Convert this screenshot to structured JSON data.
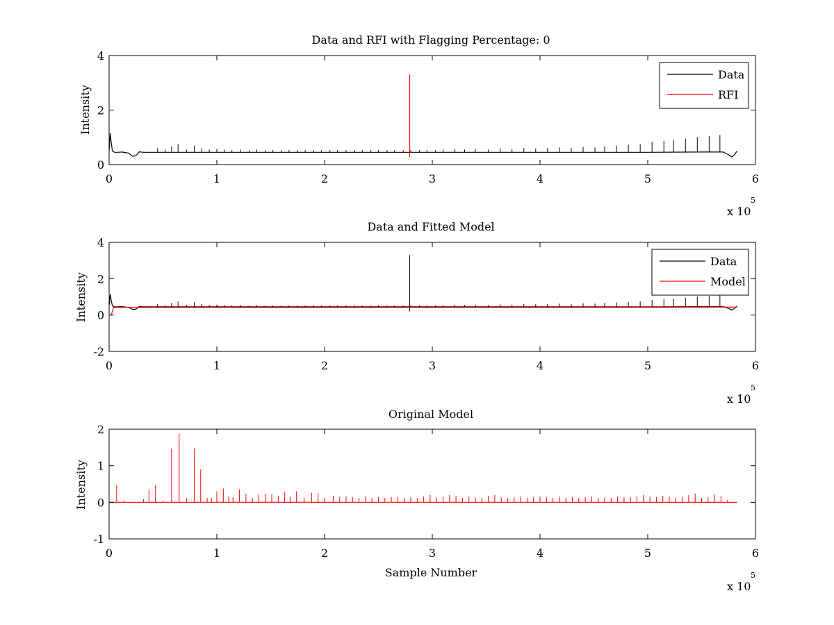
{
  "figure": {
    "background": "#ffffff",
    "data_color": "#000000",
    "rfi_color": "#ff0000",
    "model_color": "#ff0000"
  },
  "chart_data": [
    {
      "type": "line",
      "title": "Data and RFI with Flagging Percentage: 0",
      "xlabel": "",
      "ylabel": "Intensity",
      "xlim": [
        0,
        6
      ],
      "ylim": [
        0,
        4
      ],
      "xticks": [
        "0",
        "1",
        "2",
        "3",
        "4",
        "5",
        "6"
      ],
      "yticks": [
        "0",
        "2",
        "4"
      ],
      "x_multiplier_base": "x 10",
      "x_multiplier_exp": "5",
      "legend": {
        "position": "top-right",
        "entries": [
          "Data",
          "RFI"
        ]
      },
      "series": [
        {
          "name": "Data",
          "color": "#000000",
          "baseline": 0.45,
          "x": [
            0,
            0.01,
            0.02,
            0.03,
            0.05,
            0.08,
            0.12,
            0.18,
            0.22,
            0.25,
            0.28,
            0.32,
            0.5,
            1.0,
            2.0,
            3.0,
            4.0,
            5.0,
            5.5,
            5.7,
            5.75,
            5.78,
            5.8,
            5.83
          ],
          "y": [
            0.5,
            1.15,
            0.8,
            0.5,
            0.45,
            0.45,
            0.46,
            0.42,
            0.3,
            0.33,
            0.47,
            0.45,
            0.45,
            0.45,
            0.45,
            0.45,
            0.45,
            0.45,
            0.46,
            0.46,
            0.36,
            0.28,
            0.34,
            0.5
          ],
          "spikes_x": [
            0.45,
            0.52,
            0.58,
            0.64,
            0.72,
            0.79,
            0.86,
            0.93,
            1.0,
            1.07,
            1.14,
            1.22,
            1.3,
            1.37,
            1.45,
            1.52,
            1.6,
            1.67,
            1.75,
            1.82,
            1.9,
            1.97,
            2.05,
            2.12,
            2.2,
            2.28,
            2.35,
            2.43,
            2.5,
            2.58,
            2.65,
            2.73,
            2.8,
            2.88,
            2.95,
            3.03,
            3.1,
            3.21,
            3.3,
            3.4,
            3.52,
            3.63,
            3.74,
            3.85,
            3.96,
            4.07,
            4.18,
            4.29,
            4.4,
            4.51,
            4.6,
            4.71,
            4.82,
            4.93,
            5.04,
            5.15,
            5.24,
            5.35,
            5.46,
            5.57,
            5.67
          ],
          "spikes_h": [
            0.15,
            0.1,
            0.22,
            0.3,
            0.1,
            0.25,
            0.15,
            0.1,
            0.12,
            0.1,
            0.08,
            0.1,
            0.08,
            0.1,
            0.08,
            0.08,
            0.08,
            0.08,
            0.08,
            0.08,
            0.08,
            0.08,
            0.08,
            0.08,
            0.08,
            0.08,
            0.08,
            0.08,
            0.08,
            0.08,
            0.08,
            0.08,
            0.08,
            0.08,
            0.08,
            0.08,
            0.1,
            0.12,
            0.1,
            0.12,
            0.1,
            0.14,
            0.12,
            0.16,
            0.14,
            0.16,
            0.18,
            0.16,
            0.2,
            0.18,
            0.22,
            0.24,
            0.28,
            0.3,
            0.38,
            0.42,
            0.46,
            0.5,
            0.56,
            0.6,
            0.64
          ]
        },
        {
          "name": "RFI",
          "color": "#ff0000",
          "x": [
            2.79,
            2.79
          ],
          "y": [
            0.28,
            3.3
          ]
        }
      ]
    },
    {
      "type": "line",
      "title": "Data and Fitted Model",
      "xlabel": "",
      "ylabel": "Intensity",
      "xlim": [
        0,
        6
      ],
      "ylim": [
        -2,
        4
      ],
      "xticks": [
        "0",
        "1",
        "2",
        "3",
        "4",
        "5",
        "6"
      ],
      "yticks": [
        "-2",
        "0",
        "2",
        "4"
      ],
      "x_multiplier_base": "x 10",
      "x_multiplier_exp": "5",
      "legend": {
        "position": "top-right",
        "entries": [
          "Data",
          "Model"
        ]
      },
      "series": [
        {
          "name": "Data",
          "color": "#000000",
          "baseline": 0.45,
          "x": [
            0,
            0.01,
            0.02,
            0.03,
            0.05,
            0.08,
            0.12,
            0.18,
            0.22,
            0.25,
            0.28,
            0.32,
            0.5,
            1.0,
            2.0,
            3.0,
            4.0,
            5.0,
            5.5,
            5.7,
            5.75,
            5.78,
            5.8,
            5.83
          ],
          "y": [
            0.5,
            1.15,
            0.8,
            0.5,
            0.45,
            0.45,
            0.46,
            0.42,
            0.3,
            0.33,
            0.47,
            0.45,
            0.45,
            0.45,
            0.45,
            0.45,
            0.45,
            0.45,
            0.46,
            0.46,
            0.36,
            0.28,
            0.34,
            0.5
          ],
          "spikes_x": [
            0.45,
            0.52,
            0.58,
            0.64,
            0.72,
            0.79,
            0.86,
            0.93,
            1.0,
            1.07,
            1.14,
            1.22,
            1.3,
            1.37,
            1.45,
            1.52,
            1.6,
            1.67,
            1.75,
            1.82,
            1.9,
            1.97,
            2.05,
            2.12,
            2.2,
            2.28,
            2.35,
            2.43,
            2.5,
            2.58,
            2.65,
            2.73,
            2.8,
            2.88,
            2.95,
            3.03,
            3.1,
            3.21,
            3.3,
            3.4,
            3.52,
            3.63,
            3.74,
            3.85,
            3.96,
            4.07,
            4.18,
            4.29,
            4.4,
            4.51,
            4.6,
            4.71,
            4.82,
            4.93,
            5.04,
            5.15,
            5.24,
            5.35,
            5.46,
            5.57,
            5.67
          ],
          "spikes_h": [
            0.15,
            0.1,
            0.22,
            0.3,
            0.1,
            0.25,
            0.15,
            0.1,
            0.12,
            0.1,
            0.08,
            0.1,
            0.08,
            0.1,
            0.08,
            0.08,
            0.08,
            0.08,
            0.08,
            0.08,
            0.08,
            0.08,
            0.08,
            0.08,
            0.08,
            0.08,
            0.08,
            0.08,
            0.08,
            0.08,
            0.08,
            0.08,
            0.08,
            0.08,
            0.08,
            0.08,
            0.1,
            0.12,
            0.1,
            0.12,
            0.1,
            0.14,
            0.12,
            0.16,
            0.14,
            0.16,
            0.18,
            0.16,
            0.2,
            0.18,
            0.22,
            0.24,
            0.28,
            0.3,
            0.38,
            0.42,
            0.46,
            0.5,
            0.56,
            0.6,
            0.64
          ],
          "extra_spike": {
            "x": 2.79,
            "y0": 0.2,
            "y1": 3.3
          }
        },
        {
          "name": "Model",
          "color": "#ff0000",
          "x": [
            0,
            0.02,
            0.04,
            0.06,
            1.0,
            2.0,
            3.0,
            4.0,
            5.0,
            5.83
          ],
          "y": [
            0.0,
            0.0,
            0.4,
            0.42,
            0.42,
            0.42,
            0.42,
            0.42,
            0.43,
            0.44
          ]
        }
      ]
    },
    {
      "type": "line",
      "title": "Original Model",
      "xlabel": "Sample Number",
      "ylabel": "Intensity",
      "xlim": [
        0,
        6
      ],
      "ylim": [
        -1,
        2
      ],
      "xticks": [
        "0",
        "1",
        "2",
        "3",
        "4",
        "5",
        "6"
      ],
      "yticks": [
        "-1",
        "0",
        "1",
        "2"
      ],
      "x_multiplier_base": "x 10",
      "x_multiplier_exp": "5",
      "series": [
        {
          "color": "#ff0000",
          "baseline": 0.0,
          "x": [
            0.0,
            5.83
          ],
          "y": [
            0.0,
            0.0
          ],
          "spikes_x": [
            0.07,
            0.14,
            0.32,
            0.37,
            0.43,
            0.5,
            0.58,
            0.65,
            0.72,
            0.79,
            0.85,
            0.91,
            0.95,
            1.0,
            1.06,
            1.11,
            1.15,
            1.21,
            1.27,
            1.33,
            1.39,
            1.45,
            1.51,
            1.57,
            1.63,
            1.68,
            1.74,
            1.81,
            1.88,
            1.94,
            2.0,
            2.08,
            2.14,
            2.2,
            2.26,
            2.32,
            2.38,
            2.44,
            2.5,
            2.56,
            2.62,
            2.68,
            2.74,
            2.8,
            2.86,
            2.92,
            2.98,
            3.04,
            3.1,
            3.16,
            3.22,
            3.28,
            3.34,
            3.4,
            3.46,
            3.52,
            3.58,
            3.64,
            3.7,
            3.76,
            3.82,
            3.88,
            3.94,
            4.0,
            4.06,
            4.12,
            4.18,
            4.24,
            4.3,
            4.36,
            4.42,
            4.48,
            4.54,
            4.6,
            4.66,
            4.72,
            4.78,
            4.84,
            4.9,
            4.96,
            5.02,
            5.08,
            5.14,
            5.2,
            5.26,
            5.32,
            5.38,
            5.44,
            5.5,
            5.56,
            5.62,
            5.68,
            5.74
          ],
          "spikes_h": [
            0.47,
            0.05,
            0.08,
            0.35,
            0.47,
            0.05,
            1.47,
            1.88,
            0.12,
            1.47,
            0.9,
            0.12,
            0.12,
            0.3,
            0.38,
            0.16,
            0.14,
            0.35,
            0.24,
            0.12,
            0.22,
            0.24,
            0.22,
            0.18,
            0.28,
            0.16,
            0.3,
            0.12,
            0.26,
            0.25,
            0.12,
            0.18,
            0.14,
            0.16,
            0.14,
            0.12,
            0.16,
            0.12,
            0.14,
            0.12,
            0.14,
            0.16,
            0.12,
            0.14,
            0.12,
            0.16,
            0.2,
            0.14,
            0.16,
            0.2,
            0.18,
            0.12,
            0.16,
            0.14,
            0.12,
            0.18,
            0.2,
            0.14,
            0.12,
            0.14,
            0.16,
            0.12,
            0.14,
            0.16,
            0.14,
            0.12,
            0.16,
            0.12,
            0.14,
            0.12,
            0.14,
            0.16,
            0.12,
            0.14,
            0.12,
            0.16,
            0.14,
            0.14,
            0.18,
            0.2,
            0.16,
            0.14,
            0.18,
            0.16,
            0.14,
            0.16,
            0.2,
            0.24,
            0.12,
            0.14,
            0.22,
            0.18,
            0.06
          ]
        }
      ]
    }
  ]
}
